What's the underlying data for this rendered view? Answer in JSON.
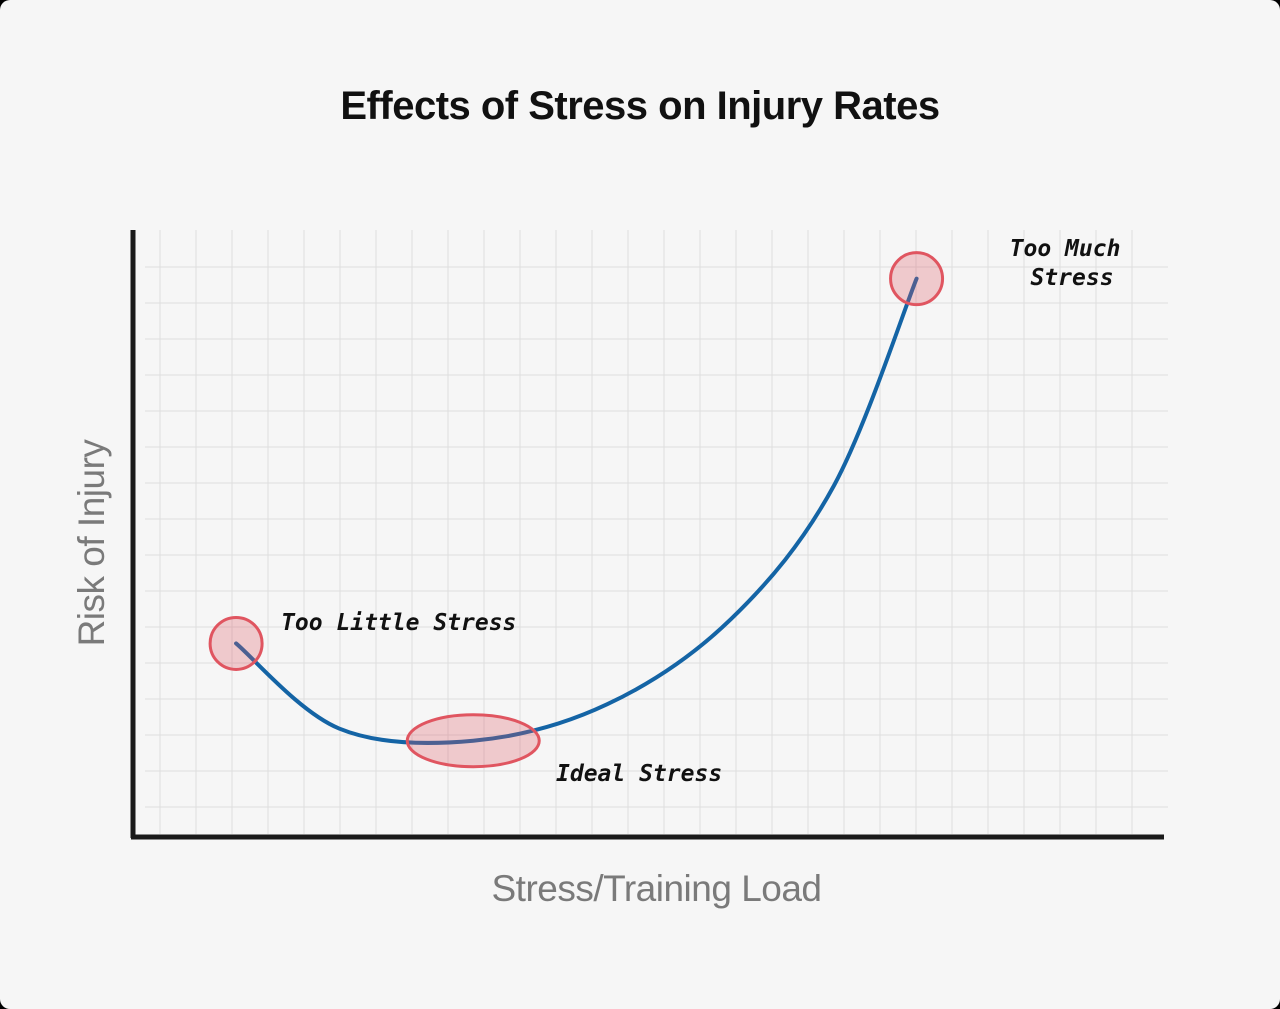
{
  "chart_data": {
    "type": "line",
    "title": "Effects of Stress on Injury Rates",
    "xlabel": "Stress/Training Load",
    "ylabel": "Risk of Injury",
    "grid": true,
    "legend": "none",
    "series": [
      {
        "color": "#1464a5",
        "curve": [
          [
            0.1,
            0.32
          ],
          [
            0.2,
            0.18
          ],
          [
            0.33,
            0.16
          ],
          [
            0.46,
            0.22
          ],
          [
            0.58,
            0.36
          ],
          [
            0.68,
            0.58
          ],
          [
            0.76,
            0.92
          ]
        ]
      }
    ],
    "annotations": [
      {
        "text": "Too Little Stress",
        "x": 0.1,
        "y": 0.32,
        "marker": "circle"
      },
      {
        "text": "Ideal Stress",
        "x": 0.33,
        "y": 0.16,
        "marker": "ellipse"
      },
      {
        "text": "Too Much Stress",
        "x": 0.76,
        "y": 0.92,
        "marker": "circle"
      }
    ],
    "highlight_color": "#e05560"
  }
}
